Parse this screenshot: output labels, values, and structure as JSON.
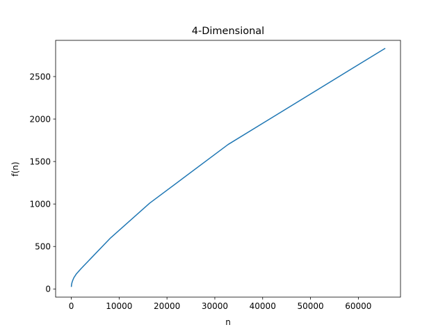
{
  "chart_data": {
    "type": "line",
    "title": "4-Dimensional",
    "xlabel": "n",
    "ylabel": "f(n)",
    "xlim": [
      -3277,
      68813
    ],
    "ylim": [
      -96,
      2926
    ],
    "xticks": [
      0,
      10000,
      20000,
      30000,
      40000,
      50000,
      60000
    ],
    "yticks": [
      0,
      500,
      1000,
      1500,
      2000,
      2500
    ],
    "grid": false,
    "series": [
      {
        "color": "#1f77b4",
        "x": [
          16,
          32,
          64,
          128,
          256,
          512,
          1024,
          2048,
          4096,
          8192,
          16384,
          32768,
          65536
        ],
        "y": [
          30,
          40,
          55,
          72,
          95,
          130,
          175,
          240,
          360,
          600,
          1010,
          1700,
          2830
        ]
      }
    ]
  }
}
